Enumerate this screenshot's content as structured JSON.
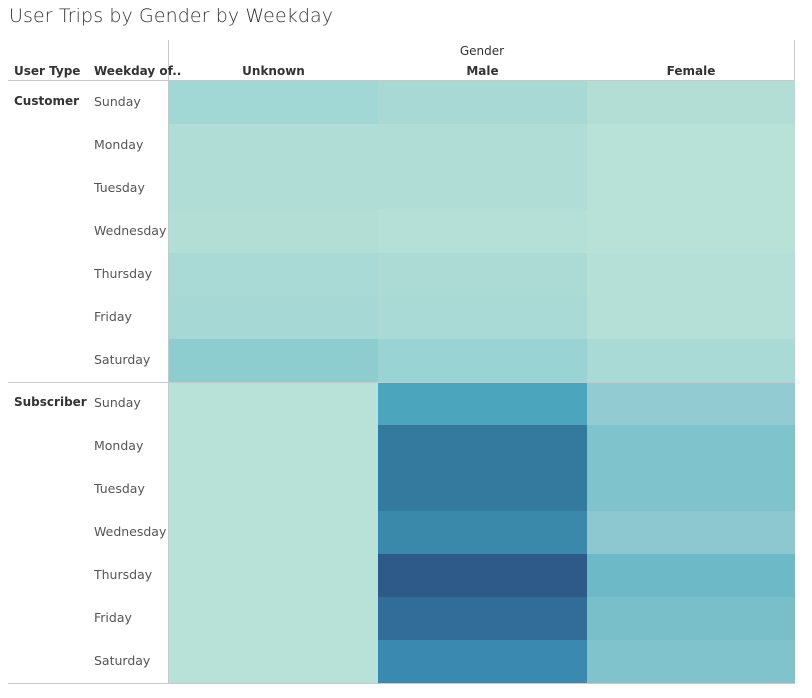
{
  "title": "User Trips by Gender by Weekday",
  "headers": {
    "column_group": "Gender",
    "row_header_1": "User Type",
    "row_header_2": "Weekday of.."
  },
  "chart_data": {
    "type": "heatmap",
    "title": "User Trips by Gender by Weekday",
    "column_dimension": "Gender",
    "columns": [
      "Unknown",
      "Male",
      "Female"
    ],
    "row_dimensions": [
      "User Type",
      "Weekday of.."
    ],
    "row_groups": [
      {
        "name": "Customer",
        "rows": [
          "Sunday",
          "Monday",
          "Tuesday",
          "Wednesday",
          "Thursday",
          "Friday",
          "Saturday"
        ],
        "colors": [
          [
            "#a1d7d5",
            "#a8d9d5",
            "#b2ded6"
          ],
          [
            "#b0ddd6",
            "#b0ddd6",
            "#b8e2d7"
          ],
          [
            "#b0ddd6",
            "#b0ddd6",
            "#b8e2d7"
          ],
          [
            "#b2ded6",
            "#b5e0d7",
            "#b8e2d7"
          ],
          [
            "#a9dad5",
            "#acdbd5",
            "#b5e0d7"
          ],
          [
            "#a6d9d5",
            "#a9dad5",
            "#b5e0d7"
          ],
          [
            "#8dcccf",
            "#9ad3d3",
            "#a9dad5"
          ]
        ]
      },
      {
        "name": "Subscriber",
        "rows": [
          "Sunday",
          "Monday",
          "Tuesday",
          "Wednesday",
          "Thursday",
          "Friday",
          "Saturday"
        ],
        "colors": [
          [
            "#b8e2d7",
            "#4aa5bd",
            "#92cbd1"
          ],
          [
            "#b8e2d7",
            "#337a9e",
            "#7fc3cd"
          ],
          [
            "#b8e2d7",
            "#337a9e",
            "#7fc3cd"
          ],
          [
            "#b8e2d7",
            "#3a89ab",
            "#8dc8d0"
          ],
          [
            "#b8e2d7",
            "#2d5a88",
            "#6db9c7"
          ],
          [
            "#b8e2d7",
            "#316d98",
            "#78bfca"
          ],
          [
            "#b8e2d7",
            "#3a89b0",
            "#80c3cc"
          ]
        ]
      }
    ]
  }
}
